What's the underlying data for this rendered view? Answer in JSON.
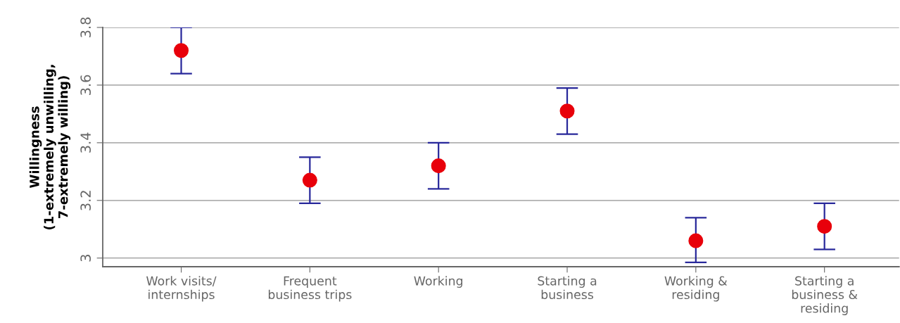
{
  "chart_data": {
    "type": "scatter",
    "ylabel": "Willingness\n(1-extremely unwilling,\n7-extremely willing)",
    "categories": [
      "Work visits/\ninternships",
      "Frequent\nbusiness trips",
      "Working",
      "Starting a\nbusiness",
      "Working &\nresiding",
      "Starting a\nbusiness &\nresiding"
    ],
    "series": [
      {
        "color": "#e8000b",
        "values": [
          3.72,
          3.27,
          3.32,
          3.51,
          3.06,
          3.11
        ],
        "errors": [
          [
            3.64,
            3.8
          ],
          [
            3.19,
            3.35
          ],
          [
            3.24,
            3.4
          ],
          [
            3.43,
            3.59
          ],
          [
            2.985,
            3.14
          ],
          [
            3.03,
            3.19
          ]
        ]
      }
    ],
    "ylim": [
      2.97,
      3.8
    ],
    "yticks": [
      {
        "value": 3,
        "label": "3"
      },
      3.2,
      3.4,
      3.6,
      3.8
    ],
    "grid": "y",
    "marker": "circle"
  }
}
